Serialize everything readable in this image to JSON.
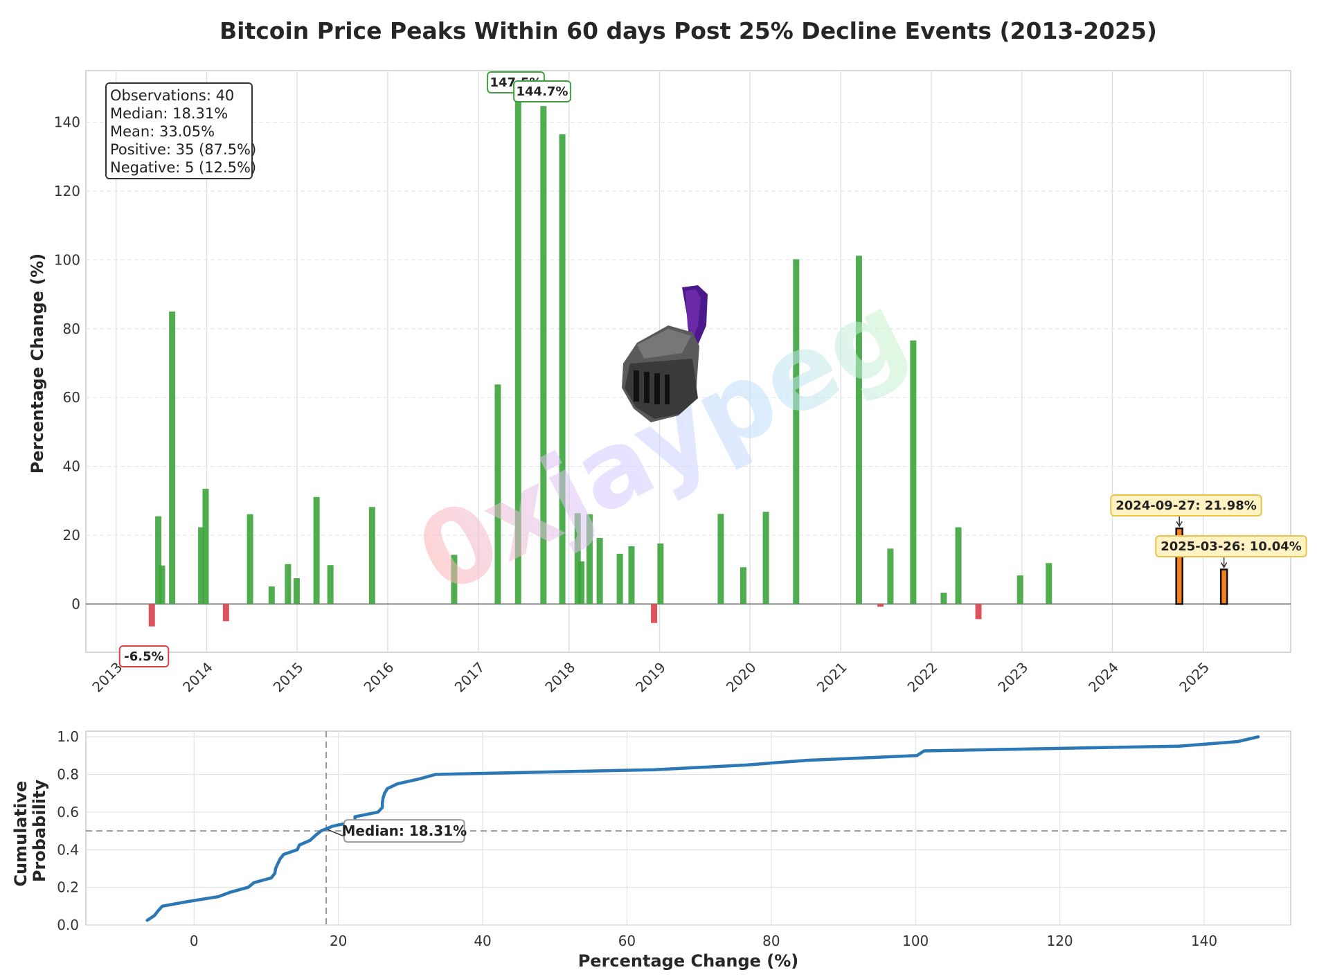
{
  "chart_data": [
    {
      "type": "bar",
      "title": "Bitcoin Price Peaks Within 60 days Post 25% Decline Events (2013-2025)",
      "ylabel": "Percentage Change (%)",
      "xlabel": "",
      "x_axis": "date",
      "xlim": [
        "2012-09-01",
        "2025-12-20"
      ],
      "ylim": [
        -14,
        155
      ],
      "x_tick_labels": [
        "2013",
        "2014",
        "2015",
        "2016",
        "2017",
        "2018",
        "2019",
        "2020",
        "2021",
        "2022",
        "2023",
        "2024",
        "2025"
      ],
      "y_ticks": [
        0,
        20,
        40,
        60,
        80,
        100,
        120,
        140
      ],
      "grid": true,
      "colors": {
        "positive": "#3ca33c",
        "negative": "#d9414b",
        "highlight": "#f08020",
        "highlight_edge": "#111111"
      },
      "stats_box": [
        "Observations: 40",
        "Median: 18.31%",
        "Mean: 33.05%",
        "Positive: 35 (87.5%)",
        "Negative: 5 (12.5%)"
      ],
      "bars": [
        {
          "date": "2013-05-25",
          "value": -6.5
        },
        {
          "date": "2013-06-20",
          "value": 25.5
        },
        {
          "date": "2013-07-05",
          "value": 11.2
        },
        {
          "date": "2013-08-15",
          "value": 85.0
        },
        {
          "date": "2013-12-10",
          "value": 22.3
        },
        {
          "date": "2013-12-28",
          "value": 33.5
        },
        {
          "date": "2014-03-20",
          "value": -5.0
        },
        {
          "date": "2014-06-25",
          "value": 26.1
        },
        {
          "date": "2014-09-20",
          "value": 5.1
        },
        {
          "date": "2014-11-25",
          "value": 11.6
        },
        {
          "date": "2014-12-30",
          "value": 7.5
        },
        {
          "date": "2015-03-20",
          "value": 31.1
        },
        {
          "date": "2015-05-15",
          "value": 11.3
        },
        {
          "date": "2015-10-30",
          "value": 28.2
        },
        {
          "date": "2016-09-25",
          "value": 14.3
        },
        {
          "date": "2017-03-20",
          "value": 63.8
        },
        {
          "date": "2017-06-10",
          "value": 147.5
        },
        {
          "date": "2017-09-20",
          "value": 144.7
        },
        {
          "date": "2017-12-05",
          "value": 136.5
        },
        {
          "date": "2018-02-05",
          "value": 26.4
        },
        {
          "date": "2018-02-20",
          "value": 12.4
        },
        {
          "date": "2018-03-25",
          "value": 26.1
        },
        {
          "date": "2018-05-05",
          "value": 19.2
        },
        {
          "date": "2018-07-25",
          "value": 14.6
        },
        {
          "date": "2018-09-10",
          "value": 16.8
        },
        {
          "date": "2018-12-10",
          "value": -5.5
        },
        {
          "date": "2019-01-05",
          "value": 17.6
        },
        {
          "date": "2019-09-05",
          "value": 26.2
        },
        {
          "date": "2019-12-05",
          "value": 10.7
        },
        {
          "date": "2020-03-05",
          "value": 26.8
        },
        {
          "date": "2020-07-05",
          "value": 100.2
        },
        {
          "date": "2021-03-15",
          "value": 101.2
        },
        {
          "date": "2021-06-10",
          "value": -0.8
        },
        {
          "date": "2021-07-20",
          "value": 16.1
        },
        {
          "date": "2021-10-20",
          "value": 76.6
        },
        {
          "date": "2022-02-20",
          "value": 3.3
        },
        {
          "date": "2022-04-20",
          "value": 22.3
        },
        {
          "date": "2022-07-10",
          "value": -4.4
        },
        {
          "date": "2022-12-25",
          "value": 8.3
        },
        {
          "date": "2023-04-20",
          "value": 11.9
        },
        {
          "date": "2024-09-27",
          "value": 21.98,
          "highlight": true
        },
        {
          "date": "2025-03-26",
          "value": 10.04,
          "highlight": true
        }
      ],
      "annotations": [
        {
          "text": "147.5%",
          "date": "2017-06-10",
          "value": 147.5,
          "style": "green"
        },
        {
          "text": "144.7%",
          "date": "2017-09-20",
          "value": 144.7,
          "style": "green"
        },
        {
          "text": "-6.5%",
          "date": "2013-05-25",
          "value": -6.5,
          "style": "red"
        },
        {
          "text": "2024-09-27: 21.98%",
          "date": "2024-09-27",
          "value": 21.98,
          "style": "yellow"
        },
        {
          "text": "2025-03-26: 10.04%",
          "date": "2025-03-26",
          "value": 10.04,
          "style": "yellow"
        }
      ]
    },
    {
      "type": "line",
      "title": "",
      "xlabel": "Percentage Change (%)",
      "ylabel": "Cumulative Probability",
      "xlim": [
        -15,
        152
      ],
      "ylim": [
        0,
        1.03
      ],
      "x_ticks": [
        0,
        20,
        40,
        60,
        80,
        100,
        120,
        140
      ],
      "y_ticks": [
        0.0,
        0.2,
        0.4,
        0.6,
        0.8,
        1.0
      ],
      "y_tick_labels": [
        "0.0",
        "0.2",
        "0.4",
        "0.6",
        "0.8",
        "1.0"
      ],
      "grid": true,
      "colors": {
        "line": "#2c78b4",
        "reference": "#999999"
      },
      "median": {
        "x": 18.31,
        "y": 0.5,
        "label": "Median: 18.31%"
      },
      "series": [
        {
          "values": [
            [
              -6.5,
              0.025
            ],
            [
              -5.5,
              0.05
            ],
            [
              -5.0,
              0.075
            ],
            [
              -4.4,
              0.1
            ],
            [
              -0.8,
              0.125
            ],
            [
              3.3,
              0.15
            ],
            [
              5.1,
              0.175
            ],
            [
              7.5,
              0.2
            ],
            [
              8.3,
              0.225
            ],
            [
              10.7,
              0.25
            ],
            [
              11.2,
              0.275
            ],
            [
              11.3,
              0.3
            ],
            [
              11.6,
              0.325
            ],
            [
              11.9,
              0.35
            ],
            [
              12.4,
              0.375
            ],
            [
              14.3,
              0.4
            ],
            [
              14.6,
              0.425
            ],
            [
              16.1,
              0.45
            ],
            [
              16.8,
              0.475
            ],
            [
              17.6,
              0.5
            ],
            [
              19.2,
              0.525
            ],
            [
              22.3,
              0.55
            ],
            [
              22.3,
              0.575
            ],
            [
              25.5,
              0.6
            ],
            [
              26.1,
              0.625
            ],
            [
              26.1,
              0.65
            ],
            [
              26.2,
              0.675
            ],
            [
              26.4,
              0.7
            ],
            [
              26.8,
              0.725
            ],
            [
              28.2,
              0.75
            ],
            [
              31.1,
              0.775
            ],
            [
              33.5,
              0.8
            ],
            [
              63.8,
              0.825
            ],
            [
              76.6,
              0.85
            ],
            [
              85.0,
              0.875
            ],
            [
              100.2,
              0.9
            ],
            [
              101.2,
              0.925
            ],
            [
              136.5,
              0.95
            ],
            [
              144.7,
              0.975
            ],
            [
              147.5,
              1.0
            ]
          ]
        }
      ]
    }
  ]
}
